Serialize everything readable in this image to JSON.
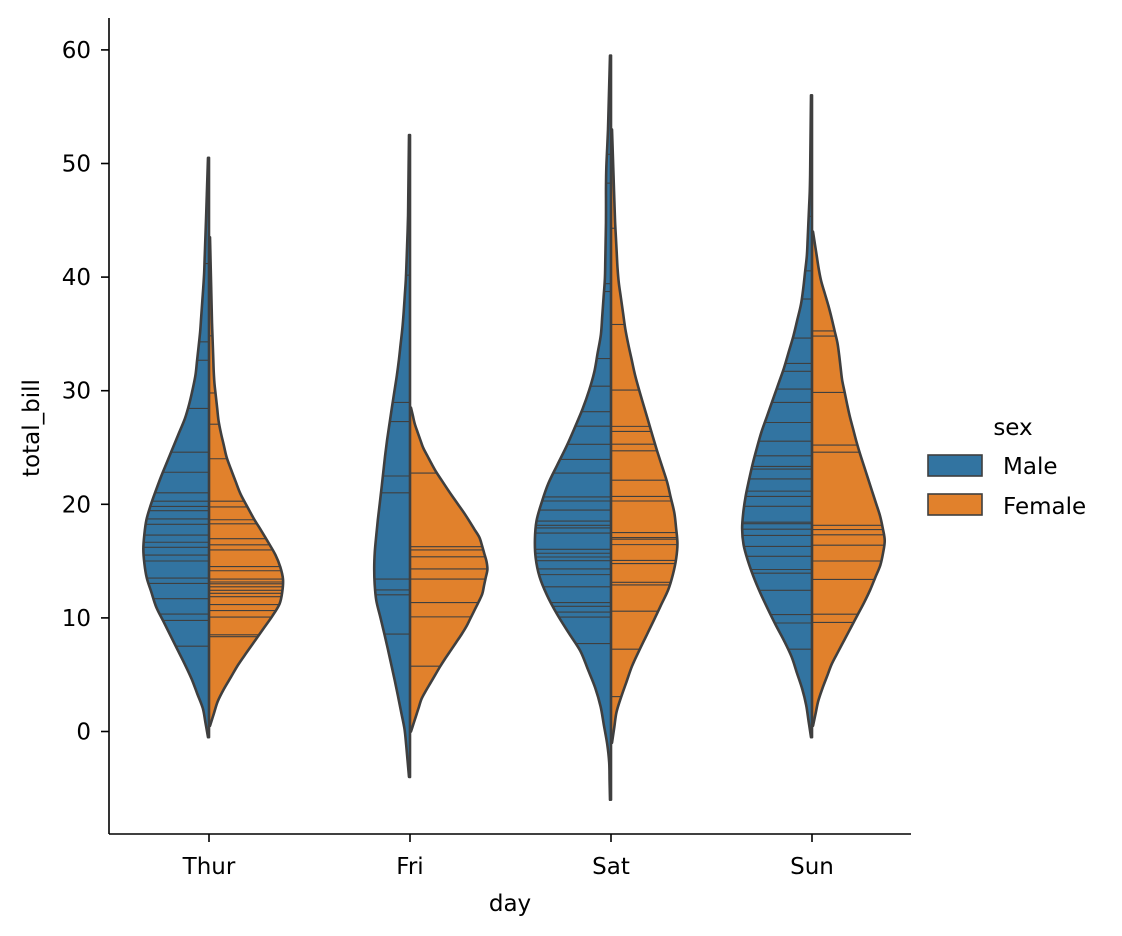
{
  "chart_data": {
    "type": "violin",
    "split": true,
    "inner": "stick",
    "xlabel": "day",
    "ylabel": "total_bill",
    "categories": [
      "Thur",
      "Fri",
      "Sat",
      "Sun"
    ],
    "ylim": [
      -9,
      63
    ],
    "yticks": [
      0,
      10,
      20,
      30,
      40,
      50,
      60
    ],
    "legend": {
      "title": "sex",
      "position": "right"
    },
    "colors": {
      "Male": "#3274a1",
      "Female": "#e1812c",
      "outline": "#3f3f3f"
    },
    "series": [
      {
        "name": "Male",
        "violins": [
          {
            "category": "Thur",
            "range": [
              -0.5,
              50.5
            ],
            "profile": [
              [
                -0.5,
                0.01
              ],
              [
                2,
                0.06
              ],
              [
                5,
                0.19
              ],
              [
                8,
                0.36
              ],
              [
                11,
                0.53
              ],
              [
                14,
                0.64
              ],
              [
                16.5,
                0.66
              ],
              [
                19,
                0.62
              ],
              [
                22,
                0.5
              ],
              [
                25,
                0.36
              ],
              [
                28,
                0.22
              ],
              [
                31,
                0.14
              ],
              [
                35,
                0.09
              ],
              [
                40,
                0.05
              ],
              [
                45,
                0.03
              ],
              [
                50.5,
                0.01
              ]
            ],
            "sticks": [
              7.51,
              9.78,
              10.34,
              11.69,
              13.03,
              13.51,
              15.01,
              15.53,
              16.21,
              16.66,
              17.29,
              18.24,
              18.71,
              19.44,
              19.81,
              20.27,
              21.01,
              22.82,
              24.59,
              28.44,
              32.68,
              34.3,
              41.19,
              48.17
            ]
          },
          {
            "category": "Fri",
            "range": [
              -4,
              52.5
            ],
            "profile": [
              [
                -4,
                0.01
              ],
              [
                0,
                0.05
              ],
              [
                4,
                0.14
              ],
              [
                8,
                0.24
              ],
              [
                12,
                0.35
              ],
              [
                15,
                0.36
              ],
              [
                18,
                0.33
              ],
              [
                21,
                0.29
              ],
              [
                25,
                0.24
              ],
              [
                28,
                0.19
              ],
              [
                32,
                0.12
              ],
              [
                36,
                0.07
              ],
              [
                40,
                0.04
              ],
              [
                45,
                0.02
              ],
              [
                52.5,
                0.01
              ]
            ],
            "sticks": [
              8.58,
              12.03,
              12.46,
              13.42,
              21.01,
              22.49,
              27.28,
              28.97,
              40.17
            ]
          },
          {
            "category": "Sat",
            "range": [
              -6,
              59.5
            ],
            "profile": [
              [
                -6,
                0.01
              ],
              [
                -2,
                0.02
              ],
              [
                3,
                0.12
              ],
              [
                7,
                0.3
              ],
              [
                10,
                0.52
              ],
              [
                13,
                0.7
              ],
              [
                16,
                0.77
              ],
              [
                19,
                0.74
              ],
              [
                22,
                0.62
              ],
              [
                25,
                0.45
              ],
              [
                28,
                0.3
              ],
              [
                31,
                0.18
              ],
              [
                35,
                0.1
              ],
              [
                40,
                0.06
              ],
              [
                45,
                0.05
              ],
              [
                49,
                0.05
              ],
              [
                53,
                0.03
              ],
              [
                59.5,
                0.01
              ]
            ],
            "sticks": [
              7.74,
              10.07,
              10.51,
              11.02,
              11.35,
              12.74,
              13.81,
              14.31,
              15.04,
              15.36,
              15.69,
              16.04,
              17.47,
              17.92,
              18.15,
              18.52,
              19.49,
              20.29,
              20.65,
              22.75,
              23.95,
              25.28,
              26.88,
              28.15,
              30.4,
              32.83,
              38.73,
              39.42,
              48.27,
              50.81
            ]
          },
          {
            "category": "Sun",
            "range": [
              -0.5,
              56
            ],
            "profile": [
              [
                -0.5,
                0.01
              ],
              [
                3,
                0.07
              ],
              [
                7,
                0.22
              ],
              [
                10,
                0.4
              ],
              [
                13,
                0.56
              ],
              [
                16,
                0.68
              ],
              [
                18,
                0.7
              ],
              [
                20,
                0.68
              ],
              [
                23,
                0.61
              ],
              [
                26,
                0.52
              ],
              [
                29,
                0.4
              ],
              [
                32,
                0.28
              ],
              [
                35,
                0.18
              ],
              [
                38,
                0.1
              ],
              [
                42,
                0.05
              ],
              [
                48,
                0.02
              ],
              [
                56,
                0.01
              ]
            ],
            "sticks": [
              7.25,
              9.55,
              10.29,
              12.43,
              13.94,
              14.26,
              15.42,
              16.29,
              17.26,
              17.81,
              18.29,
              18.43,
              19.82,
              20.69,
              21.16,
              22.23,
              23.1,
              23.33,
              24.27,
              25.56,
              27.2,
              28.97,
              30.14,
              31.71,
              32.4,
              34.63,
              38.07,
              40.55,
              45.35,
              48.17
            ]
          }
        ]
      },
      {
        "name": "Female",
        "violins": [
          {
            "category": "Thur",
            "range": [
              0.5,
              43.5
            ],
            "profile": [
              [
                0.5,
                0.01
              ],
              [
                3,
                0.1
              ],
              [
                6,
                0.3
              ],
              [
                8.5,
                0.5
              ],
              [
                11,
                0.7
              ],
              [
                13,
                0.75
              ],
              [
                15,
                0.7
              ],
              [
                17,
                0.57
              ],
              [
                19,
                0.43
              ],
              [
                21,
                0.31
              ],
              [
                24,
                0.18
              ],
              [
                27,
                0.1
              ],
              [
                31,
                0.05
              ],
              [
                36,
                0.03
              ],
              [
                43.5,
                0.01
              ]
            ],
            "sticks": [
              8.35,
              8.51,
              10.07,
              10.65,
              11.17,
              11.87,
              12.16,
              12.43,
              12.74,
              13.0,
              13.16,
              13.42,
              14.15,
              14.52,
              15.98,
              16.43,
              16.97,
              18.28,
              18.64,
              19.77,
              20.27,
              24.01,
              27.05,
              29.8,
              34.83,
              43.11
            ]
          },
          {
            "category": "Fri",
            "range": [
              0,
              28.5
            ],
            "profile": [
              [
                0,
                0.01
              ],
              [
                3,
                0.12
              ],
              [
                6,
                0.32
              ],
              [
                9,
                0.55
              ],
              [
                12,
                0.72
              ],
              [
                14.5,
                0.78
              ],
              [
                17,
                0.7
              ],
              [
                19,
                0.56
              ],
              [
                21,
                0.4
              ],
              [
                23,
                0.25
              ],
              [
                25,
                0.13
              ],
              [
                27,
                0.05
              ],
              [
                28.5,
                0.01
              ]
            ],
            "sticks": [
              5.75,
              10.09,
              11.35,
              13.42,
              14.31,
              15.38,
              15.98,
              16.27,
              22.75
            ]
          },
          {
            "category": "Sat",
            "range": [
              -1,
              53
            ],
            "profile": [
              [
                -1,
                0.01
              ],
              [
                2,
                0.06
              ],
              [
                6,
                0.22
              ],
              [
                10,
                0.44
              ],
              [
                13,
                0.6
              ],
              [
                16,
                0.67
              ],
              [
                19,
                0.64
              ],
              [
                22,
                0.56
              ],
              [
                25,
                0.45
              ],
              [
                28,
                0.35
              ],
              [
                31,
                0.25
              ],
              [
                35,
                0.15
              ],
              [
                40,
                0.07
              ],
              [
                45,
                0.04
              ],
              [
                53,
                0.01
              ]
            ],
            "sticks": [
              3.07,
              7.25,
              10.59,
              12.9,
              13.13,
              14.78,
              15.06,
              16.45,
              16.93,
              17.07,
              17.51,
              20.29,
              20.69,
              22.12,
              24.71,
              25.29,
              26.41,
              26.86,
              30.06,
              35.83,
              44.3
            ]
          },
          {
            "category": "Sun",
            "range": [
              0.5,
              44
            ],
            "profile": [
              [
                0.5,
                0.01
              ],
              [
                3,
                0.07
              ],
              [
                6,
                0.2
              ],
              [
                9,
                0.38
              ],
              [
                12,
                0.56
              ],
              [
                15,
                0.7
              ],
              [
                17,
                0.73
              ],
              [
                19,
                0.68
              ],
              [
                22,
                0.57
              ],
              [
                25,
                0.46
              ],
              [
                28,
                0.37
              ],
              [
                31,
                0.3
              ],
              [
                34,
                0.26
              ],
              [
                37,
                0.18
              ],
              [
                40,
                0.08
              ],
              [
                44,
                0.01
              ]
            ],
            "sticks": [
              9.6,
              10.33,
              13.39,
              15.01,
              16.4,
              17.31,
              17.78,
              18.15,
              24.59,
              25.21,
              29.85,
              34.81,
              35.26
            ]
          }
        ]
      }
    ]
  }
}
